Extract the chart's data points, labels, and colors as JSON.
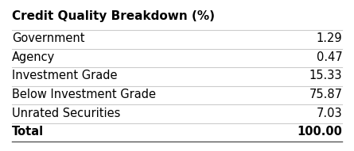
{
  "title": "Credit Quality Breakdown (%)",
  "rows": [
    {
      "label": "Government",
      "value": "1.29"
    },
    {
      "label": "Agency",
      "value": "0.47"
    },
    {
      "label": "Investment Grade",
      "value": "15.33"
    },
    {
      "label": "Below Investment Grade",
      "value": "75.87"
    },
    {
      "label": "Unrated Securities",
      "value": "7.03"
    }
  ],
  "total_label": "Total",
  "total_value": "100.00",
  "bg_color": "#ffffff",
  "text_color": "#000000",
  "line_color": "#cccccc",
  "title_fontsize": 11,
  "body_fontsize": 10.5
}
